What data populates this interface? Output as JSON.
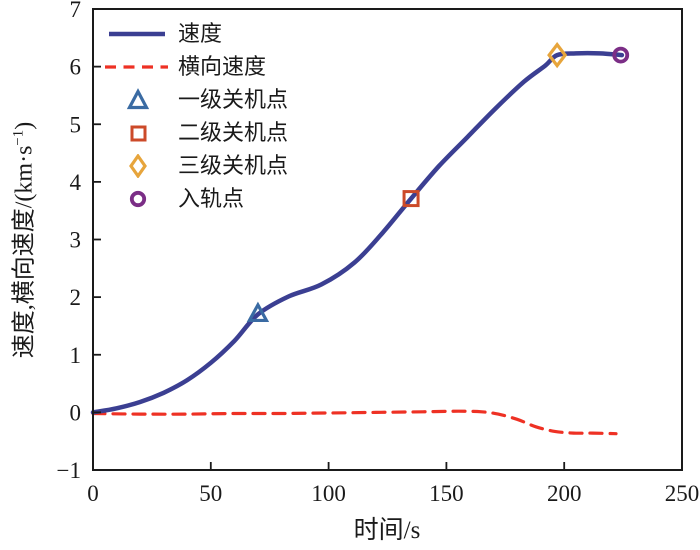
{
  "figure": {
    "background": "#ffffff",
    "frame_color": "#1a1a1a",
    "text_color": "#1a1a1a"
  },
  "axes": {
    "x_label": "时间/s",
    "y_label_prefix": "速度,横向速度/(km·s",
    "y_label_sup": "−1",
    "y_label_suffix": ")",
    "x_ticks": [
      0,
      50,
      100,
      150,
      200,
      250
    ],
    "x_tick_labels": [
      "0",
      "50",
      "100",
      "150",
      "200",
      "250"
    ],
    "y_ticks": [
      -1,
      0,
      1,
      2,
      3,
      4,
      5,
      6,
      7
    ],
    "y_tick_labels": [
      "−1",
      "0",
      "1",
      "2",
      "3",
      "4",
      "5",
      "6",
      "7"
    ]
  },
  "legend": {
    "items": [
      {
        "label": "速度",
        "type": "solid-line",
        "color": "#3b3f92"
      },
      {
        "label": "横向速度",
        "type": "dashed-line",
        "color": "#ee3124"
      },
      {
        "label": "一级关机点",
        "type": "triangle",
        "color": "#3a6ba3"
      },
      {
        "label": "二级关机点",
        "type": "square",
        "color": "#cc4a29"
      },
      {
        "label": "三级关机点",
        "type": "diamond",
        "color": "#e7a53c"
      },
      {
        "label": "入轨点",
        "type": "circle",
        "color": "#7b2e86"
      }
    ]
  },
  "chart_data": {
    "type": "line",
    "title": "",
    "xlabel": "时间/s",
    "ylabel": "速度,横向速度/(km·s⁻¹)",
    "xlim": [
      0,
      250
    ],
    "ylim": [
      -1,
      7
    ],
    "grid": false,
    "legend_position": "upper-left",
    "series": [
      {
        "name": "速度",
        "style": "solid",
        "color": "#3b3f92",
        "line_width": 4.5,
        "x": [
          0,
          10,
          20,
          30,
          40,
          50,
          60,
          70,
          83,
          97,
          111,
          123,
          135,
          147,
          159,
          171,
          183,
          192,
          197,
          205,
          215,
          224.5
        ],
        "y": [
          0,
          0.07,
          0.18,
          0.34,
          0.56,
          0.86,
          1.24,
          1.7,
          2.01,
          2.22,
          2.6,
          3.12,
          3.71,
          4.28,
          4.78,
          5.28,
          5.74,
          6.02,
          6.2,
          6.23,
          6.23,
          6.2
        ]
      },
      {
        "name": "横向速度",
        "style": "dashed",
        "color": "#ee3124",
        "line_width": 3.2,
        "x": [
          0,
          20,
          40,
          60,
          80,
          100,
          120,
          140,
          155,
          165,
          172,
          180,
          188,
          196,
          204,
          212,
          222
        ],
        "y": [
          -0.02,
          -0.03,
          -0.03,
          -0.02,
          -0.02,
          -0.01,
          0.0,
          0.01,
          0.02,
          0.01,
          -0.03,
          -0.12,
          -0.25,
          -0.33,
          -0.36,
          -0.36,
          -0.37
        ]
      }
    ],
    "markers": [
      {
        "name": "一级关机点",
        "shape": "triangle",
        "color": "#3a6ba3",
        "x": 70,
        "y": 1.7
      },
      {
        "name": "二级关机点",
        "shape": "square",
        "color": "#cc4a29",
        "x": 135,
        "y": 3.71
      },
      {
        "name": "三级关机点",
        "shape": "diamond",
        "color": "#e7a53c",
        "x": 197,
        "y": 6.2
      },
      {
        "name": "入轨点",
        "shape": "circle",
        "color": "#7b2e86",
        "x": 224,
        "y": 6.2
      }
    ]
  }
}
